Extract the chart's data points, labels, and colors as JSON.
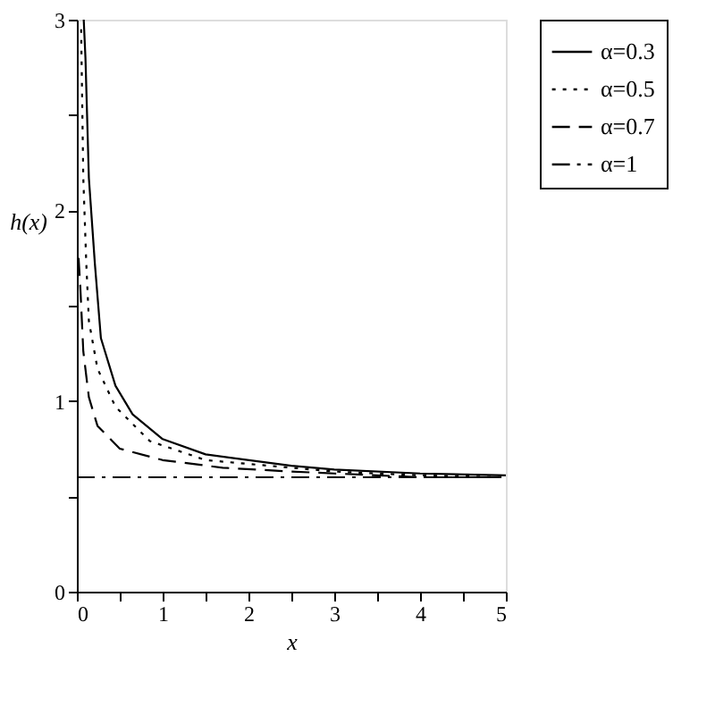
{
  "chart_data": {
    "type": "line",
    "xlabel": "x",
    "ylabel": "h(x)",
    "xlim": [
      0,
      5
    ],
    "ylim": [
      0,
      3
    ],
    "xticks": [
      0,
      {
        "value": 0.5,
        "label": null
      },
      1,
      {
        "value": 1.5,
        "label": null
      },
      2,
      {
        "value": 2.5,
        "label": null
      },
      3,
      {
        "value": 3.5,
        "label": null
      },
      4,
      {
        "value": 4.5,
        "label": null
      },
      5
    ],
    "yticks": [
      0,
      {
        "value": 0.5,
        "label": null
      },
      1,
      {
        "value": 1.5,
        "label": null
      },
      2,
      {
        "value": 2.5,
        "label": null
      },
      3
    ],
    "grid": false,
    "legend": "right",
    "series": [
      {
        "name": "α=0.3",
        "color": "#000000",
        "line_style": "solid",
        "x": [
          0.08,
          0.1,
          0.14,
          0.21,
          0.28,
          0.45,
          0.65,
          1.0,
          1.5,
          2.5,
          3,
          4,
          5
        ],
        "values": [
          3.0,
          2.8,
          2.17,
          1.72,
          1.33,
          1.08,
          0.93,
          0.8,
          0.72,
          0.66,
          0.64,
          0.62,
          0.61
        ]
      },
      {
        "name": "α=0.5",
        "color": "#000000",
        "line_style": "dotted",
        "x": [
          0.05,
          0.075,
          0.11,
          0.14,
          0.24,
          0.45,
          0.85,
          1.5,
          2.5,
          3,
          4,
          5
        ],
        "values": [
          2.95,
          2.17,
          1.72,
          1.42,
          1.17,
          0.97,
          0.79,
          0.69,
          0.65,
          0.63,
          0.61,
          0.6
        ]
      },
      {
        "name": "α=0.7",
        "color": "#000000",
        "line_style": "dashed",
        "x": [
          0.02,
          0.04,
          0.075,
          0.14,
          0.24,
          0.5,
          1.0,
          1.7,
          2.5,
          3,
          4,
          5
        ],
        "values": [
          1.75,
          1.6,
          1.26,
          1.02,
          0.87,
          0.75,
          0.69,
          0.65,
          0.63,
          0.62,
          0.6,
          0.6
        ]
      },
      {
        "name": "α=1",
        "color": "#000000",
        "line_style": "dashdot",
        "x": [
          0,
          5
        ],
        "values": [
          0.6,
          0.6
        ]
      }
    ]
  }
}
